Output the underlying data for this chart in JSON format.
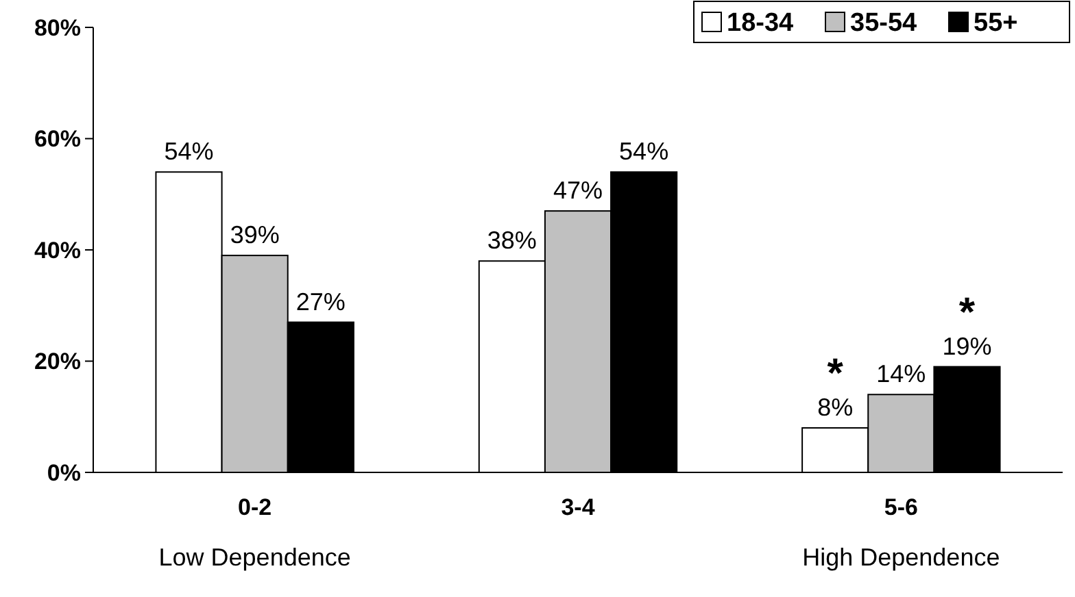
{
  "chart_data": {
    "type": "bar",
    "categories": [
      "0-2",
      "3-4",
      "5-6"
    ],
    "series": [
      {
        "name": "18-34",
        "color": "#ffffff",
        "values": [
          54,
          38,
          8
        ],
        "value_labels": [
          "54%",
          "38%",
          "8%"
        ]
      },
      {
        "name": "35-54",
        "color": "#c0c0c0",
        "values": [
          39,
          47,
          14
        ],
        "value_labels": [
          "39%",
          "47%",
          "14%"
        ]
      },
      {
        "name": "55+",
        "color": "#000000",
        "values": [
          27,
          54,
          19
        ],
        "value_labels": [
          "27%",
          "54%",
          "19%"
        ]
      }
    ],
    "ylim": [
      0,
      80
    ],
    "yticks": [
      {
        "value": 0,
        "label": "0%"
      },
      {
        "value": 20,
        "label": "20%"
      },
      {
        "value": 40,
        "label": "40%"
      },
      {
        "value": 60,
        "label": "60%"
      },
      {
        "value": 80,
        "label": "80%"
      }
    ],
    "legend": "top right",
    "grid": false,
    "annotations": [
      "Low Dependence",
      "High Dependence",
      "*",
      "*"
    ]
  }
}
